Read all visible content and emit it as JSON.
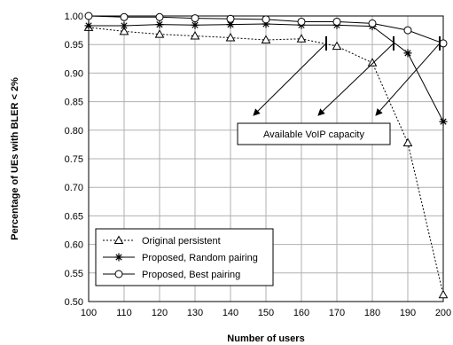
{
  "chart_data": {
    "type": "line",
    "xlabel": "Number of users",
    "ylabel": "Percentage of UEs with BLER < 2%",
    "xlim": [
      100,
      200
    ],
    "ylim": [
      0.5,
      1.0
    ],
    "x_ticks": [
      "100",
      "110",
      "120",
      "130",
      "140",
      "150",
      "160",
      "170",
      "180",
      "190",
      "200"
    ],
    "y_ticks": [
      "0.50",
      "0.55",
      "0.60",
      "0.65",
      "0.70",
      "0.75",
      "0.80",
      "0.85",
      "0.90",
      "0.95",
      "1.00"
    ],
    "grid": true,
    "legend_position": "bottom-left",
    "x": [
      100,
      110,
      120,
      130,
      140,
      150,
      160,
      170,
      180,
      190,
      200
    ],
    "series": [
      {
        "name": "Original persistent",
        "marker": "triangle",
        "line_style": "dotted",
        "values": [
          0.98,
          0.973,
          0.968,
          0.965,
          0.962,
          0.958,
          0.96,
          0.947,
          0.918,
          0.778,
          0.512
        ]
      },
      {
        "name": "Proposed, Random pairing",
        "marker": "star",
        "line_style": "solid",
        "values": [
          0.983,
          0.983,
          0.985,
          0.984,
          0.985,
          0.986,
          0.984,
          0.984,
          0.982,
          0.935,
          0.815
        ]
      },
      {
        "name": "Proposed, Best pairing",
        "marker": "circle",
        "line_style": "solid",
        "values": [
          1.0,
          0.998,
          0.998,
          0.996,
          0.995,
          0.994,
          0.99,
          0.99,
          0.987,
          0.975,
          0.952
        ]
      }
    ],
    "annotation": {
      "text": "Available VoIP capacity",
      "capacity_points": [
        {
          "x": 167,
          "y": 0.952
        },
        {
          "x": 186,
          "y": 0.952
        },
        {
          "x": 199,
          "y": 0.952
        }
      ]
    }
  }
}
